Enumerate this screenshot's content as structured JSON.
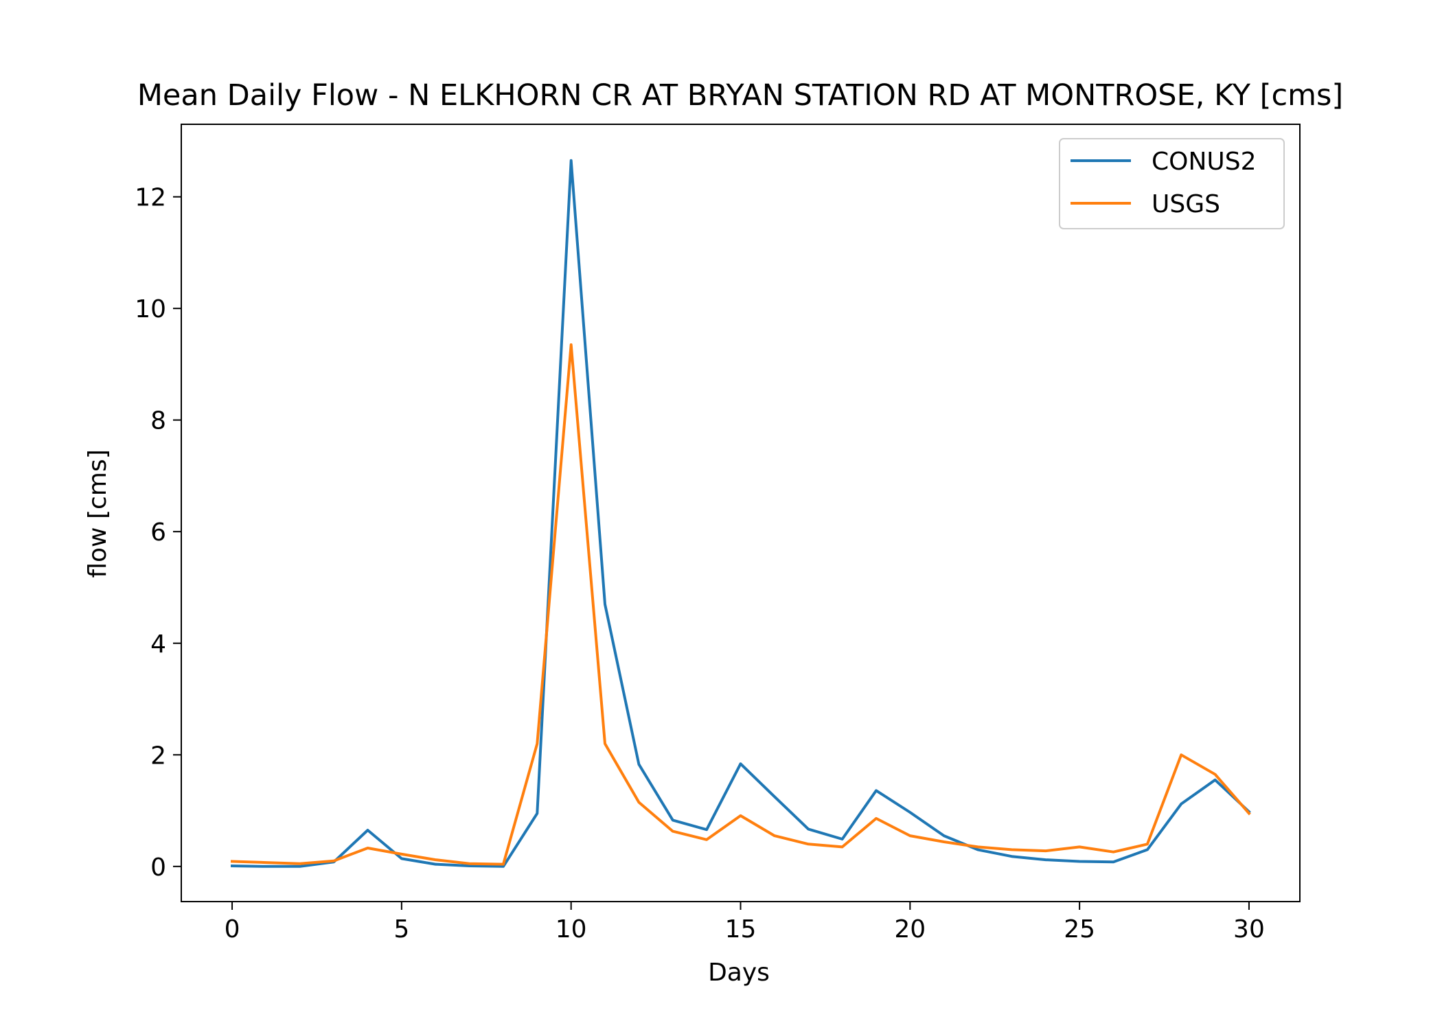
{
  "chart_data": {
    "type": "line",
    "title": "Mean Daily Flow - N ELKHORN CR AT BRYAN STATION RD AT MONTROSE, KY [cms]",
    "xlabel": "Days",
    "ylabel": "flow [cms]",
    "xlim": [
      -1.5,
      31.5
    ],
    "ylim": [
      -0.63,
      13.3
    ],
    "xticks": [
      0,
      5,
      10,
      15,
      20,
      25,
      30
    ],
    "yticks": [
      0,
      2,
      4,
      6,
      8,
      10,
      12
    ],
    "x": [
      0,
      1,
      2,
      3,
      4,
      5,
      6,
      7,
      8,
      9,
      10,
      11,
      12,
      13,
      14,
      15,
      16,
      17,
      18,
      19,
      20,
      21,
      22,
      23,
      24,
      25,
      26,
      27,
      28,
      29,
      30
    ],
    "series": [
      {
        "name": "CONUS2",
        "color": "#1f77b4",
        "values": [
          0.01,
          0.0,
          0.0,
          0.08,
          0.65,
          0.14,
          0.04,
          0.01,
          0.0,
          0.95,
          12.65,
          4.7,
          1.83,
          0.83,
          0.66,
          1.84,
          1.25,
          0.67,
          0.49,
          1.36,
          0.97,
          0.55,
          0.3,
          0.18,
          0.12,
          0.09,
          0.08,
          0.3,
          1.12,
          1.55,
          0.98
        ]
      },
      {
        "name": "USGS",
        "color": "#ff7f0e",
        "values": [
          0.09,
          0.07,
          0.05,
          0.1,
          0.33,
          0.22,
          0.12,
          0.05,
          0.04,
          2.2,
          9.35,
          2.2,
          1.15,
          0.63,
          0.48,
          0.91,
          0.55,
          0.4,
          0.35,
          0.86,
          0.55,
          0.44,
          0.35,
          0.3,
          0.28,
          0.35,
          0.26,
          0.4,
          2.0,
          1.65,
          0.95
        ]
      }
    ],
    "grid": false,
    "legend": "top-right"
  }
}
